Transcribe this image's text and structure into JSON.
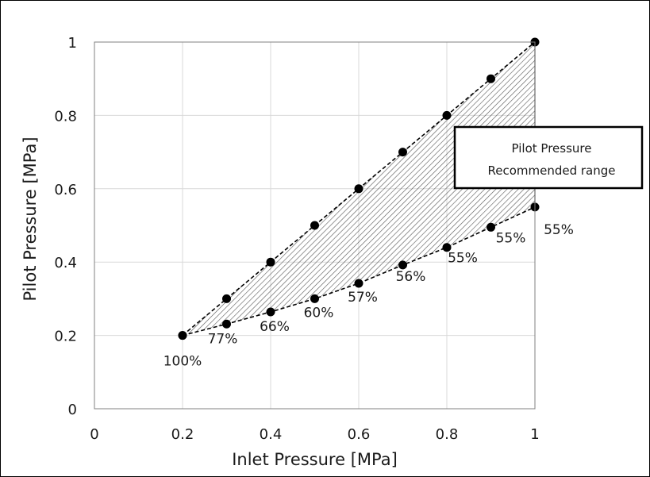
{
  "chart_data": {
    "type": "scatter",
    "xlabel": "Inlet Pressure  [MPa]",
    "ylabel": "Pilot Pressure [MPa]",
    "xlim": [
      0,
      1
    ],
    "ylim": [
      0,
      1
    ],
    "x_ticks": [
      0,
      0.2,
      0.4,
      0.6,
      0.8,
      1
    ],
    "x_tick_labels": [
      "0",
      "0.2",
      "0.4",
      "0.6",
      "0.8",
      "1"
    ],
    "y_ticks": [
      0,
      0.2,
      0.4,
      0.6,
      0.8,
      1
    ],
    "y_tick_labels": [
      "0",
      "0.2",
      "0.4",
      "0.6",
      "0.8",
      "1"
    ],
    "grid": true,
    "series": [
      {
        "x": [
          0.2,
          0.3,
          0.4,
          0.5,
          0.6,
          0.7,
          0.8,
          0.9,
          1.0
        ],
        "y": [
          0.2,
          0.3,
          0.4,
          0.5,
          0.6,
          0.7,
          0.8,
          0.9,
          1.0
        ]
      },
      {
        "x": [
          0.2,
          0.3,
          0.4,
          0.5,
          0.6,
          0.7,
          0.8,
          0.9,
          1.0
        ],
        "y": [
          0.2,
          0.231,
          0.264,
          0.3,
          0.342,
          0.392,
          0.44,
          0.495,
          0.55
        ],
        "point_labels": [
          "100%",
          "77%",
          "66%",
          "60%",
          "57%",
          "56%",
          "55%",
          "55%",
          "55%"
        ]
      }
    ],
    "shaded_region": {
      "between_series": [
        0,
        1
      ],
      "fill": "hatched"
    },
    "legend": {
      "lines": [
        "Pilot Pressure",
        "Recommended range"
      ],
      "placement": "right"
    },
    "colors": {
      "marker": "#000000",
      "line": "#000000",
      "grid": "#d9d9d9",
      "hatch": "#555555"
    }
  }
}
